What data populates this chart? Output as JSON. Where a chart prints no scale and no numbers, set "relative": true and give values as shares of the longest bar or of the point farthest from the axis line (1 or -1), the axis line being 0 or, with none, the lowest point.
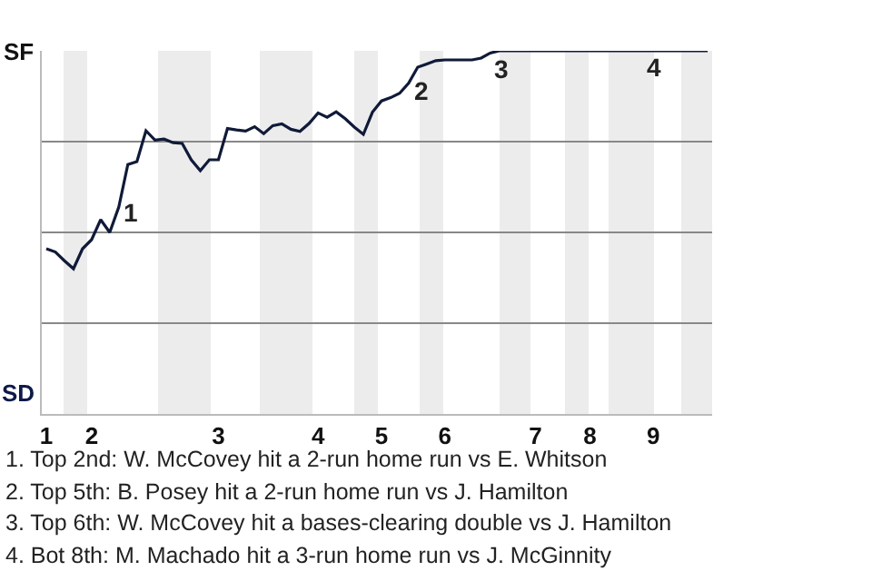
{
  "chart_data": {
    "type": "line",
    "relative": true,
    "categories": [
      "1",
      null,
      null,
      null,
      null,
      "2",
      null,
      null,
      null,
      null,
      null,
      null,
      null,
      null,
      null,
      null,
      null,
      null,
      null,
      "3",
      null,
      null,
      null,
      null,
      null,
      null,
      null,
      null,
      null,
      null,
      "4",
      null,
      null,
      null,
      null,
      null,
      null,
      "5",
      null,
      null,
      null,
      null,
      null,
      null,
      "6",
      null,
      null,
      null,
      null,
      null,
      null,
      null,
      null,
      null,
      "7",
      null,
      null,
      null,
      null,
      null,
      "8",
      null,
      null,
      null,
      null,
      null,
      null,
      "9",
      null,
      null,
      null,
      null,
      null,
      null
    ],
    "series": [
      {
        "color": "#101a38",
        "values": [
          0.455,
          0.446,
          0.422,
          0.4,
          0.455,
          0.48,
          0.535,
          0.5,
          0.57,
          0.687,
          0.695,
          0.78,
          0.754,
          0.757,
          0.747,
          0.745,
          0.7,
          0.67,
          0.7,
          0.7,
          0.786,
          0.782,
          0.779,
          0.791,
          0.772,
          0.794,
          0.799,
          0.784,
          0.778,
          0.8,
          0.829,
          0.817,
          0.832,
          0.813,
          0.79,
          0.77,
          0.831,
          0.862,
          0.871,
          0.883,
          0.911,
          0.955,
          0.964,
          0.973,
          0.975,
          0.975,
          0.975,
          0.975,
          0.98,
          0.994,
          1,
          1,
          1,
          1,
          1,
          1,
          1,
          1,
          1,
          1,
          1,
          1,
          1,
          1,
          1,
          1,
          1,
          1,
          1,
          1,
          1,
          1,
          1,
          1
        ]
      }
    ],
    "grid": "y",
    "marker": "none",
    "line_style": "solid",
    "annotations": [
      "SF",
      "SD",
      "1",
      "2",
      "3",
      "4",
      "1. Top 2nd: W. McCovey hit a 2-run home run vs E. Whitson",
      "2. Top 5th: B. Posey hit a 2-run home run vs J. Hamilton",
      "3. Top 6th: W. McCovey hit a bases-clearing double vs J. Hamilton",
      "4. Bot 8th: M. Machado hit a 3-run home run vs J. McGinnity"
    ]
  }
}
